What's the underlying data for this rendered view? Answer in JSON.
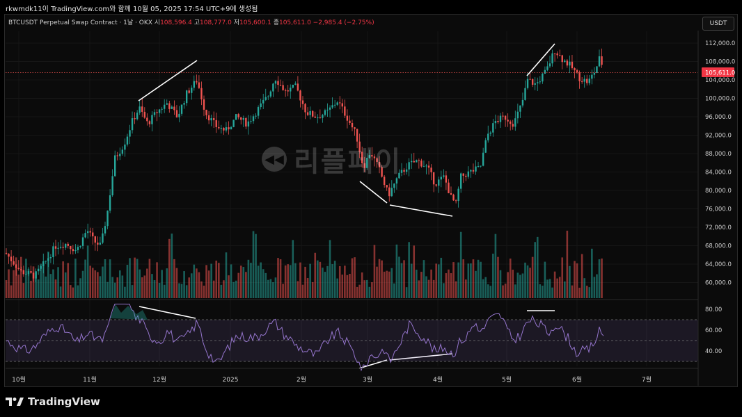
{
  "header": {
    "caption": "rkwmdk11이 TradingView.com와 함께 10월 05, 2025 17:54 UTC+9에 생성됨"
  },
  "legend": {
    "symbol": "BTCUSDT Perpetual Swap Contract · 1날 · OKX",
    "open_label": "시",
    "open": "108,596.4",
    "high_label": "고",
    "high": "108,777.0",
    "low_label": "저",
    "low": "105,600.1",
    "close_label": "종",
    "close": "105,611.0",
    "change": "−2,985.4 (−2.75%)"
  },
  "currency_badge": "USDT",
  "price_axis": [
    "112,000.0",
    "108,000.0",
    "104,000.0",
    "100,000.0",
    "96,000.0",
    "92,000.0",
    "88,000.0",
    "84,000.0",
    "80,000.0",
    "76,000.0",
    "72,000.0",
    "68,000.0",
    "64,000.0",
    "60,000.0"
  ],
  "price_badge": "105,611.0",
  "rsi_axis": [
    "80.00",
    "60.00",
    "40.00"
  ],
  "time_axis": [
    "10월",
    "11월",
    "12월",
    "2025",
    "2월",
    "3월",
    "4월",
    "5월",
    "6월",
    "7월"
  ],
  "watermark": "리플페이",
  "footer": {
    "brand": "TradingView"
  },
  "colors": {
    "up": "#26a69a",
    "down": "#ef5350",
    "rsi": "#9575cd",
    "bg": "#0b0b0b"
  }
}
